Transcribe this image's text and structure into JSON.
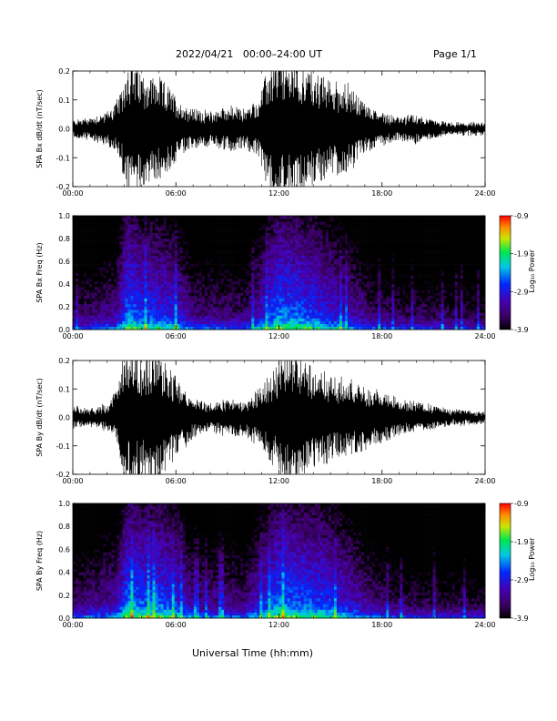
{
  "header": {
    "title": "2022/04/21   00:00–24:00 UT",
    "page": "Page 1/1"
  },
  "x_axis_title": "Universal Time (hh:mm)",
  "chart_data": [
    {
      "id": "bx_time",
      "type": "line",
      "ylabel": "SPA Bx dB/dt (nT/sec)",
      "xlim": [
        0,
        24
      ],
      "ylim": [
        -0.2,
        0.2
      ],
      "xticks": [
        "00:00",
        "06:00",
        "12:00",
        "18:00",
        "24:00"
      ],
      "yticks": [
        "-0.2",
        "-0.1",
        "0.0",
        "0.1",
        "0.2"
      ],
      "activity_envelope": [
        [
          0,
          0.03
        ],
        [
          1,
          0.04
        ],
        [
          2,
          0.06
        ],
        [
          2.8,
          0.12
        ],
        [
          3.2,
          0.25
        ],
        [
          4,
          0.2
        ],
        [
          5,
          0.18
        ],
        [
          5.7,
          0.14
        ],
        [
          6.3,
          0.09
        ],
        [
          7,
          0.07
        ],
        [
          8,
          0.06
        ],
        [
          9,
          0.08
        ],
        [
          10,
          0.07
        ],
        [
          10.8,
          0.1
        ],
        [
          11.3,
          0.2
        ],
        [
          12,
          0.25
        ],
        [
          13,
          0.23
        ],
        [
          14,
          0.2
        ],
        [
          15,
          0.17
        ],
        [
          16,
          0.16
        ],
        [
          16.8,
          0.1
        ],
        [
          17.5,
          0.07
        ],
        [
          18,
          0.06
        ],
        [
          19,
          0.04
        ],
        [
          20,
          0.05
        ],
        [
          21,
          0.03
        ],
        [
          22,
          0.02
        ],
        [
          23,
          0.02
        ],
        [
          24,
          0.02
        ]
      ],
      "line_color": "#000000"
    },
    {
      "id": "bx_spec",
      "type": "heatmap",
      "ylabel": "SPA Bx Freq (Hz)",
      "xlim": [
        0,
        24
      ],
      "ylim": [
        0.0,
        1.0
      ],
      "xticks": [
        "00:00",
        "06:00",
        "12:00",
        "18:00",
        "24:00"
      ],
      "yticks": [
        "0.0",
        "0.2",
        "0.4",
        "0.6",
        "0.8",
        "1.0"
      ],
      "colorbar": {
        "label": "Log₁₀ Power",
        "ticks": [
          "-0.9",
          "-1.9",
          "-2.9",
          "-3.9"
        ],
        "range": [
          -3.9,
          -0.9
        ]
      },
      "power_levels": [
        [
          0,
          -3.5
        ],
        [
          2.5,
          -3.2
        ],
        [
          3.2,
          -2.4
        ],
        [
          4,
          -2.6
        ],
        [
          5,
          -2.7
        ],
        [
          6,
          -2.8
        ],
        [
          7,
          -3.3
        ],
        [
          10,
          -3.4
        ],
        [
          12,
          -2.4
        ],
        [
          13,
          -2.5
        ],
        [
          14.5,
          -2.7
        ],
        [
          16,
          -3.0
        ],
        [
          17.5,
          -3.4
        ],
        [
          19,
          -3.5
        ],
        [
          24,
          -3.6
        ]
      ]
    },
    {
      "id": "by_time",
      "type": "line",
      "ylabel": "SPA By dB/dt (nT/sec)",
      "xlim": [
        0,
        24
      ],
      "ylim": [
        -0.2,
        0.2
      ],
      "xticks": [
        "00:00",
        "06:00",
        "12:00",
        "18:00",
        "24:00"
      ],
      "yticks": [
        "-0.2",
        "-0.1",
        "0.0",
        "0.1",
        "0.2"
      ],
      "activity_envelope": [
        [
          0,
          0.04
        ],
        [
          1,
          0.03
        ],
        [
          2,
          0.05
        ],
        [
          2.6,
          0.1
        ],
        [
          3,
          0.25
        ],
        [
          4,
          0.22
        ],
        [
          5,
          0.22
        ],
        [
          6,
          0.15
        ],
        [
          7,
          0.07
        ],
        [
          8,
          0.05
        ],
        [
          9,
          0.07
        ],
        [
          10,
          0.06
        ],
        [
          11,
          0.12
        ],
        [
          11.8,
          0.18
        ],
        [
          12.5,
          0.25
        ],
        [
          13.5,
          0.2
        ],
        [
          14.5,
          0.17
        ],
        [
          15.5,
          0.14
        ],
        [
          16.5,
          0.13
        ],
        [
          17.5,
          0.1
        ],
        [
          18.5,
          0.08
        ],
        [
          19.5,
          0.06
        ],
        [
          20.5,
          0.05
        ],
        [
          22,
          0.03
        ],
        [
          24,
          0.02
        ]
      ],
      "line_color": "#000000"
    },
    {
      "id": "by_spec",
      "type": "heatmap",
      "ylabel": "SPA By Freq (Hz)",
      "xlim": [
        0,
        24
      ],
      "ylim": [
        0.0,
        1.0
      ],
      "xticks": [
        "00:00",
        "06:00",
        "12:00",
        "18:00",
        "24:00"
      ],
      "yticks": [
        "0.0",
        "0.2",
        "0.4",
        "0.6",
        "0.8",
        "1.0"
      ],
      "colorbar": {
        "label": "Log₁₀ Power",
        "ticks": [
          "-0.9",
          "-1.9",
          "-2.9",
          "-3.9"
        ],
        "range": [
          -3.9,
          -0.9
        ]
      },
      "power_levels": [
        [
          0,
          -3.4
        ],
        [
          2.5,
          -3.1
        ],
        [
          3.2,
          -2.4
        ],
        [
          4,
          -2.5
        ],
        [
          5,
          -2.5
        ],
        [
          6,
          -2.7
        ],
        [
          7,
          -3.2
        ],
        [
          10,
          -3.3
        ],
        [
          12,
          -2.4
        ],
        [
          13,
          -2.5
        ],
        [
          14.5,
          -2.6
        ],
        [
          16,
          -2.9
        ],
        [
          17.5,
          -3.3
        ],
        [
          19,
          -3.5
        ],
        [
          24,
          -3.6
        ]
      ]
    }
  ]
}
